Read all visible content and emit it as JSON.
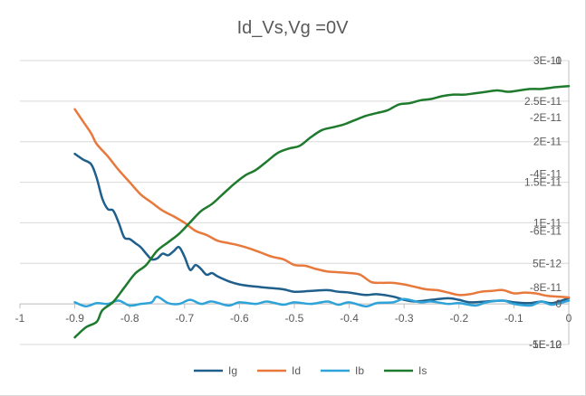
{
  "chart_data": {
    "type": "line",
    "title": "Id_Vs,Vg =0V",
    "x_axis": {
      "range": [
        -1,
        0
      ],
      "ticks": [
        "-1",
        "-0.9",
        "-0.8",
        "-0.7",
        "-0.6",
        "-0.5",
        "-0.4",
        "-0.3",
        "-0.2",
        "-0.1",
        "0"
      ]
    },
    "y_axis_primary": {
      "range": [
        -5e-12,
        3e-11
      ],
      "ticks": [
        "-5E-12",
        "0",
        "5E-12",
        "1E-11",
        "1.5E-11",
        "2E-11",
        "2.5E-11",
        "3E-11"
      ]
    },
    "y_axis_secondary": {
      "range": [
        -1e-10,
        0
      ],
      "ticks": [
        "-1E-10",
        "-8E-11",
        "-6E-11",
        "-4E-11",
        "-2E-11",
        "0"
      ]
    },
    "grid": "horizontal",
    "legend_position": "bottom",
    "series": [
      {
        "name": "Ig",
        "color": "#1f5f8b",
        "axis": "primary",
        "points": [
          [
            -0.9,
            1.85e-11
          ],
          [
            -0.885,
            1.78e-11
          ],
          [
            -0.87,
            1.72e-11
          ],
          [
            -0.86,
            1.55e-11
          ],
          [
            -0.85,
            1.3e-11
          ],
          [
            -0.84,
            1.17e-11
          ],
          [
            -0.83,
            1.15e-11
          ],
          [
            -0.82,
            1e-11
          ],
          [
            -0.81,
            8.2e-12
          ],
          [
            -0.8,
            8e-12
          ],
          [
            -0.79,
            7.5e-12
          ],
          [
            -0.78,
            7e-12
          ],
          [
            -0.77,
            6.2e-12
          ],
          [
            -0.76,
            5.5e-12
          ],
          [
            -0.75,
            5.6e-12
          ],
          [
            -0.74,
            6.2e-12
          ],
          [
            -0.73,
            6e-12
          ],
          [
            -0.72,
            6.5e-12
          ],
          [
            -0.71,
            7e-12
          ],
          [
            -0.7,
            5.8e-12
          ],
          [
            -0.69,
            4.2e-12
          ],
          [
            -0.68,
            4.8e-12
          ],
          [
            -0.67,
            4.3e-12
          ],
          [
            -0.66,
            3.6e-12
          ],
          [
            -0.65,
            3.8e-12
          ],
          [
            -0.64,
            3.4e-12
          ],
          [
            -0.62,
            2.8e-12
          ],
          [
            -0.6,
            2.4e-12
          ],
          [
            -0.58,
            2.2e-12
          ],
          [
            -0.55,
            2e-12
          ],
          [
            -0.52,
            1.8e-12
          ],
          [
            -0.5,
            1.5e-12
          ],
          [
            -0.47,
            1.6e-12
          ],
          [
            -0.44,
            1.7e-12
          ],
          [
            -0.42,
            1.5e-12
          ],
          [
            -0.4,
            1.4e-12
          ],
          [
            -0.37,
            1.1e-12
          ],
          [
            -0.35,
            1.2e-12
          ],
          [
            -0.32,
            9e-13
          ],
          [
            -0.3,
            5e-13
          ],
          [
            -0.28,
            3e-13
          ],
          [
            -0.25,
            5e-13
          ],
          [
            -0.22,
            7e-13
          ],
          [
            -0.2,
            5e-13
          ],
          [
            -0.18,
            2e-13
          ],
          [
            -0.15,
            3e-13
          ],
          [
            -0.12,
            4e-13
          ],
          [
            -0.1,
            2e-13
          ],
          [
            -0.07,
            1e-13
          ],
          [
            -0.05,
            3e-13
          ],
          [
            -0.03,
            1e-13
          ],
          [
            0.0,
            7e-13
          ]
        ]
      },
      {
        "name": "Id",
        "color": "#e8793c",
        "axis": "primary",
        "points": [
          [
            -0.9,
            2.4e-11
          ],
          [
            -0.885,
            2.25e-11
          ],
          [
            -0.87,
            2.1e-11
          ],
          [
            -0.86,
            1.97e-11
          ],
          [
            -0.84,
            1.82e-11
          ],
          [
            -0.82,
            1.65e-11
          ],
          [
            -0.8,
            1.5e-11
          ],
          [
            -0.78,
            1.35e-11
          ],
          [
            -0.76,
            1.25e-11
          ],
          [
            -0.74,
            1.15e-11
          ],
          [
            -0.72,
            1.08e-11
          ],
          [
            -0.7,
            1e-11
          ],
          [
            -0.68,
            9e-12
          ],
          [
            -0.66,
            8.5e-12
          ],
          [
            -0.64,
            7.8e-12
          ],
          [
            -0.62,
            7.5e-12
          ],
          [
            -0.6,
            7.2e-12
          ],
          [
            -0.58,
            6.8e-12
          ],
          [
            -0.56,
            6.3e-12
          ],
          [
            -0.54,
            5.8e-12
          ],
          [
            -0.52,
            5.5e-12
          ],
          [
            -0.5,
            4.8e-12
          ],
          [
            -0.48,
            4.7e-12
          ],
          [
            -0.46,
            4.3e-12
          ],
          [
            -0.44,
            4e-12
          ],
          [
            -0.42,
            3.9e-12
          ],
          [
            -0.4,
            3.8e-12
          ],
          [
            -0.38,
            3.6e-12
          ],
          [
            -0.36,
            2.7e-12
          ],
          [
            -0.34,
            2.6e-12
          ],
          [
            -0.32,
            2.6e-12
          ],
          [
            -0.3,
            2.4e-12
          ],
          [
            -0.28,
            2.1e-12
          ],
          [
            -0.26,
            1.8e-12
          ],
          [
            -0.24,
            1.7e-12
          ],
          [
            -0.22,
            1.4e-12
          ],
          [
            -0.2,
            1.1e-12
          ],
          [
            -0.18,
            1.2e-12
          ],
          [
            -0.16,
            1.5e-12
          ],
          [
            -0.14,
            1.6e-12
          ],
          [
            -0.12,
            1.7e-12
          ],
          [
            -0.1,
            1.3e-12
          ],
          [
            -0.08,
            1.4e-12
          ],
          [
            -0.06,
            1.3e-12
          ],
          [
            -0.04,
            1e-12
          ],
          [
            -0.02,
            9e-13
          ],
          [
            0.0,
            8e-13
          ]
        ]
      },
      {
        "name": "Ib",
        "color": "#2ea3d9",
        "axis": "primary",
        "points": [
          [
            -0.9,
            2e-13
          ],
          [
            -0.88,
            -3e-13
          ],
          [
            -0.86,
            1e-13
          ],
          [
            -0.84,
            0.0
          ],
          [
            -0.82,
            4e-13
          ],
          [
            -0.8,
            -2e-13
          ],
          [
            -0.78,
            0.0
          ],
          [
            -0.76,
            2e-13
          ],
          [
            -0.75,
            9e-13
          ],
          [
            -0.73,
            1e-13
          ],
          [
            -0.71,
            0.0
          ],
          [
            -0.69,
            5e-13
          ],
          [
            -0.67,
            0.0
          ],
          [
            -0.65,
            3e-13
          ],
          [
            -0.62,
            -2e-13
          ],
          [
            -0.6,
            2e-13
          ],
          [
            -0.57,
            0.0
          ],
          [
            -0.55,
            3e-13
          ],
          [
            -0.52,
            -1e-13
          ],
          [
            -0.5,
            2e-13
          ],
          [
            -0.47,
            0.0
          ],
          [
            -0.44,
            3e-13
          ],
          [
            -0.42,
            -1e-13
          ],
          [
            -0.4,
            2e-13
          ],
          [
            -0.37,
            -3e-13
          ],
          [
            -0.35,
            1e-13
          ],
          [
            -0.32,
            2e-13
          ],
          [
            -0.3,
            6e-13
          ],
          [
            -0.27,
            2e-13
          ],
          [
            -0.25,
            3e-13
          ],
          [
            -0.22,
            0.0
          ],
          [
            -0.2,
            1e-13
          ],
          [
            -0.17,
            -2e-13
          ],
          [
            -0.15,
            2e-13
          ],
          [
            -0.12,
            4e-13
          ],
          [
            -0.1,
            0.0
          ],
          [
            -0.07,
            -2e-13
          ],
          [
            -0.05,
            3e-13
          ],
          [
            -0.03,
            -1e-13
          ],
          [
            0.0,
            4e-13
          ]
        ]
      },
      {
        "name": "Is",
        "color": "#1e7a2c",
        "axis": "secondary",
        "points": [
          [
            -0.9,
            -9.75e-11
          ],
          [
            -0.88,
            -9.4e-11
          ],
          [
            -0.86,
            -9.2e-11
          ],
          [
            -0.85,
            -8.8e-11
          ],
          [
            -0.83,
            -8.5e-11
          ],
          [
            -0.81,
            -8e-11
          ],
          [
            -0.79,
            -7.5e-11
          ],
          [
            -0.77,
            -7.2e-11
          ],
          [
            -0.75,
            -6.7e-11
          ],
          [
            -0.73,
            -6.4e-11
          ],
          [
            -0.71,
            -6.1e-11
          ],
          [
            -0.69,
            -5.7e-11
          ],
          [
            -0.67,
            -5.3e-11
          ],
          [
            -0.65,
            -5.05e-11
          ],
          [
            -0.63,
            -4.7e-11
          ],
          [
            -0.61,
            -4.35e-11
          ],
          [
            -0.59,
            -4.05e-11
          ],
          [
            -0.57,
            -3.85e-11
          ],
          [
            -0.55,
            -3.55e-11
          ],
          [
            -0.53,
            -3.25e-11
          ],
          [
            -0.51,
            -3.1e-11
          ],
          [
            -0.49,
            -3e-11
          ],
          [
            -0.47,
            -2.7e-11
          ],
          [
            -0.45,
            -2.45e-11
          ],
          [
            -0.43,
            -2.35e-11
          ],
          [
            -0.41,
            -2.25e-11
          ],
          [
            -0.39,
            -2.1e-11
          ],
          [
            -0.37,
            -1.95e-11
          ],
          [
            -0.35,
            -1.85e-11
          ],
          [
            -0.33,
            -1.75e-11
          ],
          [
            -0.31,
            -1.55e-11
          ],
          [
            -0.29,
            -1.5e-11
          ],
          [
            -0.27,
            -1.4e-11
          ],
          [
            -0.25,
            -1.35e-11
          ],
          [
            -0.23,
            -1.25e-11
          ],
          [
            -0.21,
            -1.2e-11
          ],
          [
            -0.19,
            -1.2e-11
          ],
          [
            -0.17,
            -1.15e-11
          ],
          [
            -0.15,
            -1.1e-11
          ],
          [
            -0.13,
            -1.05e-11
          ],
          [
            -0.11,
            -1.1e-11
          ],
          [
            -0.09,
            -1.05e-11
          ],
          [
            -0.07,
            -1e-11
          ],
          [
            -0.05,
            -1e-11
          ],
          [
            -0.03,
            -9.5e-12
          ],
          [
            0.0,
            -9e-12
          ]
        ]
      }
    ]
  }
}
